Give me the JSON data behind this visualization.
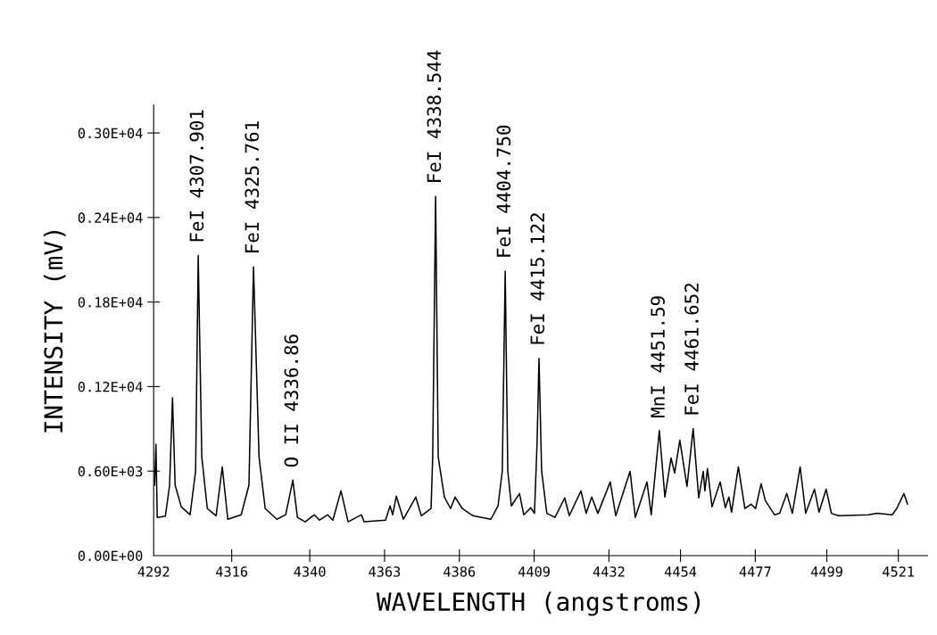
{
  "chart_data": {
    "type": "line",
    "xlabel": "WAVELENGTH (angstroms)",
    "ylabel": "INTENSITY (mV)",
    "x": [
      4292.3,
      4292.7,
      4293.1,
      4295.6,
      4296.9,
      4297.8,
      4298.6,
      4300.5,
      4303.2,
      4304.9,
      4305.7,
      4306.8,
      4308.5,
      4311.2,
      4313.1,
      4314.8,
      4318.9,
      4321.3,
      4322.7,
      4324.4,
      4326.3,
      4329.9,
      4332.6,
      4334.8,
      4336.2,
      4338.6,
      4341.4,
      4343.0,
      4345.5,
      4347.1,
      4349.6,
      4351.8,
      4355.9,
      4356.7,
      4363.3,
      4364.7,
      4365.5,
      4366.6,
      4368.8,
      4372.6,
      4374.3,
      4377.3,
      4377.8,
      4378.7,
      4379.5,
      4381.4,
      4383.3,
      4384.7,
      4386.9,
      4390.2,
      4395.7,
      4397.9,
      4399.2,
      4400.1,
      4400.9,
      4402.0,
      4404.5,
      4405.8,
      4408.0,
      4409.1,
      4409.9,
      4410.5,
      4411.3,
      4412.9,
      4415.4,
      4418.4,
      4419.8,
      4423.4,
      4425.0,
      4426.7,
      4428.6,
      4432.4,
      4434.1,
      4438.5,
      4440.1,
      4443.7,
      4445.0,
      4447.5,
      4449.2,
      4451.1,
      4452.2,
      4453.8,
      4456.0,
      4457.9,
      4459.6,
      4461.0,
      4461.5,
      4462.3,
      4463.7,
      4466.2,
      4467.8,
      4468.9,
      4469.7,
      4471.8,
      4473.8,
      4475.7,
      4477.1,
      4478.8,
      4480.1,
      4482.9,
      4484.5,
      4486.7,
      4488.4,
      4490.8,
      4492.5,
      4495.2,
      4496.6,
      4498.8,
      4500.4,
      4502.6,
      4511.7,
      4514.4,
      4519.1,
      4520.5,
      4522.7,
      4523.8
    ],
    "series": [
      {
        "color": "#000000",
        "values": [
          500,
          790,
          271,
          280,
          500,
          1120,
          500,
          346,
          290,
          600,
          2130,
          700,
          334,
          283,
          630,
          258,
          290,
          500,
          2050,
          700,
          334,
          258,
          290,
          536,
          271,
          240,
          290,
          252,
          290,
          252,
          460,
          240,
          290,
          240,
          252,
          353,
          290,
          422,
          258,
          416,
          283,
          334,
          700,
          2550,
          700,
          416,
          334,
          416,
          334,
          283,
          258,
          353,
          600,
          2020,
          600,
          353,
          441,
          290,
          340,
          300,
          800,
          1400,
          600,
          300,
          271,
          410,
          283,
          460,
          300,
          416,
          300,
          523,
          283,
          598,
          271,
          523,
          290,
          888,
          416,
          693,
          586,
          819,
          491,
          901,
          410,
          598,
          460,
          617,
          346,
          523,
          340,
          416,
          308,
          630,
          334,
          365,
          334,
          510,
          390,
          290,
          300,
          441,
          300,
          630,
          300,
          472,
          308,
          472,
          300,
          283,
          290,
          300,
          290,
          334,
          441,
          365
        ]
      }
    ],
    "xlim": [
      4292,
      4530
    ],
    "ylim": [
      0,
      3200
    ],
    "xticks": [
      4292,
      4316,
      4340,
      4363,
      4386,
      4409,
      4432,
      4454,
      4477,
      4499,
      4521
    ],
    "yticks": [
      {
        "value": 0,
        "label": "0.00E+00"
      },
      {
        "value": 600,
        "label": "0.60E+03"
      },
      {
        "value": 1200,
        "label": "0.12E+04"
      },
      {
        "value": 1800,
        "label": "0.18E+04"
      },
      {
        "value": 2400,
        "label": "0.24E+04"
      },
      {
        "value": 3000,
        "label": "0.30E+04"
      }
    ],
    "annotations": [
      {
        "text": "FeI 4307.901",
        "x": 4305.7,
        "y": 2130
      },
      {
        "text": "FeI 4325.761",
        "x": 4322.7,
        "y": 2050
      },
      {
        "text": "O II 4336.86",
        "x": 4334.8,
        "y": 536
      },
      {
        "text": "FeI 4338.544",
        "x": 4378.7,
        "y": 2550
      },
      {
        "text": "FeI 4404.750",
        "x": 4400.1,
        "y": 2020
      },
      {
        "text": "FeI 4415.122",
        "x": 4410.5,
        "y": 1400
      },
      {
        "text": "MnI 4451.59",
        "x": 4447.5,
        "y": 888
      },
      {
        "text": "FeI 4461.652",
        "x": 4457.9,
        "y": 901
      }
    ],
    "grid": false,
    "legend": false
  }
}
